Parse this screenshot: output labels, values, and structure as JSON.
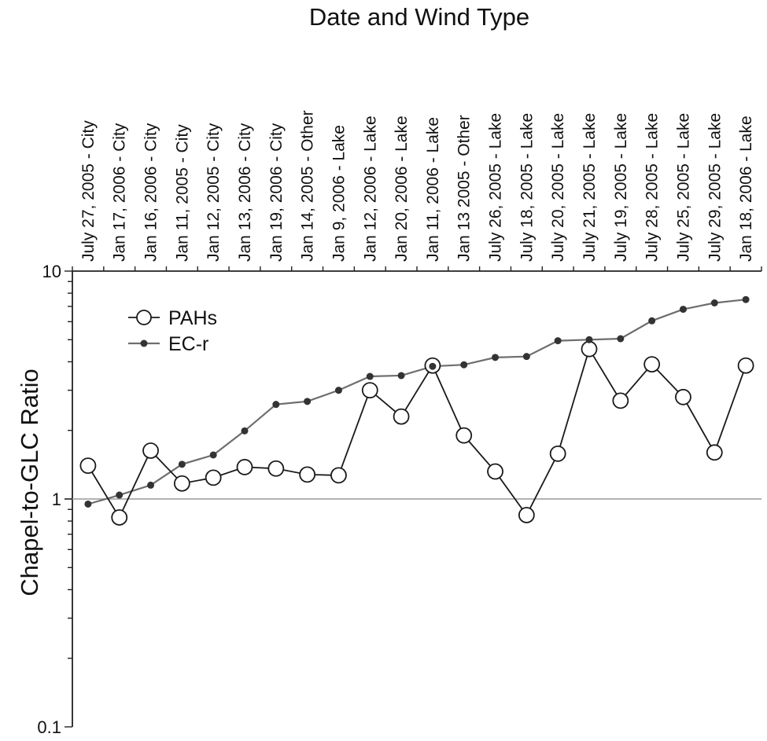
{
  "chart_data": {
    "type": "line",
    "title": "Date and Wind Type",
    "xlabel": "Date and Wind Type",
    "ylabel": "Chapel-to-GLC Ratio",
    "yscale": "log",
    "ylim": [
      0.1,
      10
    ],
    "yticks": [
      "10",
      "1",
      "0.1"
    ],
    "reference_line": 1,
    "grid": false,
    "legend_position": "top-left",
    "categories": [
      "July 27, 2005 - City",
      "Jan 17, 2006 - City",
      "Jan 16, 2006 - City",
      "Jan 11, 2005 - City",
      "Jan 12, 2005 - City",
      "Jan 13, 2006 - City",
      "Jan 19, 2006 - City",
      "Jan 14, 2005 - Other",
      "Jan 9, 2006 - Lake",
      "Jan 12, 2006 - Lake",
      "Jan 20, 2006 - Lake",
      "Jan 11, 2006 - Lake",
      "Jan 13 2005 - Other",
      "July 26, 2005 - Lake",
      "July 18, 2005 - Lake",
      "July 20, 2005 - Lake",
      "July 21, 2005 - Lake",
      "July 19, 2005 - Lake",
      "July 28, 2005 - Lake",
      "July 25, 2005 - Lake",
      "July 29, 2005 - Lake",
      "Jan 18, 2006 - Lake"
    ],
    "series": [
      {
        "name": "PAHs",
        "marker": "open-circle",
        "color": "#1a1a1a",
        "values": [
          1.4,
          0.83,
          1.63,
          1.17,
          1.24,
          1.38,
          1.36,
          1.28,
          1.27,
          3.0,
          2.3,
          3.85,
          1.9,
          1.32,
          0.85,
          1.58,
          4.55,
          2.7,
          3.9,
          2.8,
          1.6,
          3.85
        ]
      },
      {
        "name": "EC-r",
        "marker": "filled-dot",
        "color": "#6e6e6e",
        "values": [
          0.95,
          1.04,
          1.15,
          1.42,
          1.56,
          1.99,
          2.6,
          2.68,
          3.0,
          3.45,
          3.48,
          3.82,
          3.88,
          4.18,
          4.22,
          4.95,
          5.0,
          5.05,
          6.05,
          6.8,
          7.25,
          7.5
        ]
      }
    ]
  }
}
